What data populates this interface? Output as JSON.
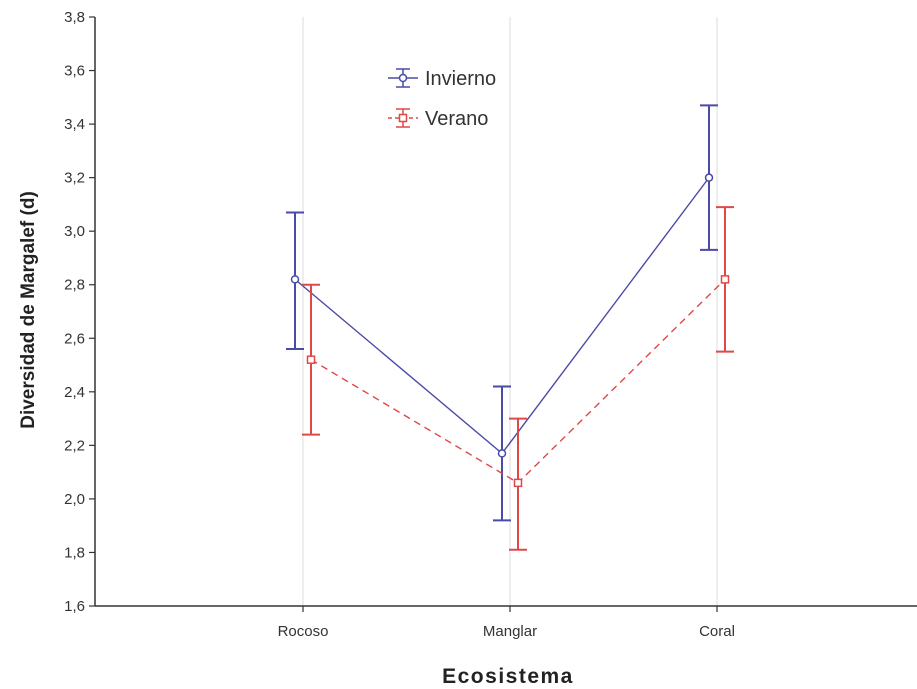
{
  "chart_data": {
    "type": "line",
    "title": "",
    "xlabel": "Ecosistema",
    "ylabel": "Diversidad de Margalef (d)",
    "categories": [
      "Rocoso",
      "Manglar",
      "Coral"
    ],
    "ylim": [
      1.6,
      3.8
    ],
    "yticks": [
      "1,6",
      "1,8",
      "2,0",
      "2,2",
      "2,4",
      "2,6",
      "2,8",
      "3,0",
      "3,2",
      "3,4",
      "3,6",
      "3,8"
    ],
    "grid": "vertical lines at categories",
    "legend_position": "top-center",
    "series": [
      {
        "name": "Invierno",
        "color": "#4a4aa8",
        "line_style": "solid",
        "marker": "circle",
        "values": [
          2.82,
          2.17,
          3.2
        ],
        "error_low": [
          2.56,
          1.92,
          2.93
        ],
        "error_high": [
          3.07,
          2.42,
          3.47
        ]
      },
      {
        "name": "Verano",
        "color": "#e04848",
        "line_style": "dashed",
        "marker": "square",
        "values": [
          2.52,
          2.06,
          2.82
        ],
        "error_low": [
          2.24,
          1.81,
          2.55
        ],
        "error_high": [
          2.8,
          2.3,
          3.09
        ]
      }
    ]
  }
}
